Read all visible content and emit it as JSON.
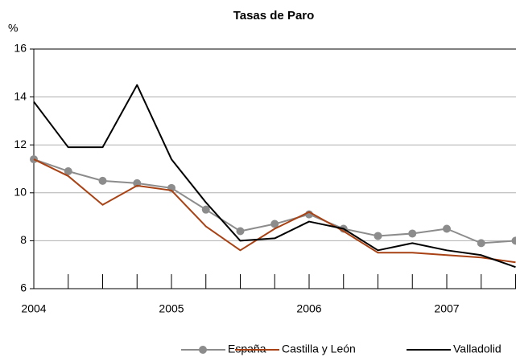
{
  "chart_data": {
    "type": "line",
    "title": "Tasas de Paro",
    "y_label": "%",
    "categories": [
      "2004",
      null,
      null,
      null,
      "2005",
      null,
      null,
      null,
      "2006",
      null,
      null,
      null,
      "2007",
      null,
      null
    ],
    "series": [
      {
        "name": "España",
        "color": "#8c8c8c",
        "marker": "circle",
        "values": [
          11.4,
          10.9,
          10.5,
          10.4,
          10.2,
          9.3,
          8.4,
          8.7,
          9.1,
          8.5,
          8.2,
          8.3,
          8.5,
          7.9,
          8.0
        ]
      },
      {
        "name": "Castilla y León",
        "color": "#a84214",
        "values": [
          11.4,
          10.7,
          9.5,
          10.3,
          10.1,
          8.6,
          7.6,
          8.5,
          9.2,
          8.4,
          7.5,
          7.5,
          7.4,
          7.3,
          7.1
        ]
      },
      {
        "name": "Valladolid",
        "color": "#000000",
        "values": [
          13.8,
          11.9,
          11.9,
          14.5,
          11.4,
          9.6,
          8.0,
          8.1,
          8.8,
          8.5,
          7.6,
          7.9,
          7.6,
          7.4,
          6.9
        ]
      }
    ],
    "ylim": [
      6,
      16
    ],
    "yticks": [
      6,
      8,
      10,
      12,
      14,
      16
    ],
    "grid": true,
    "legend": "bottom"
  }
}
